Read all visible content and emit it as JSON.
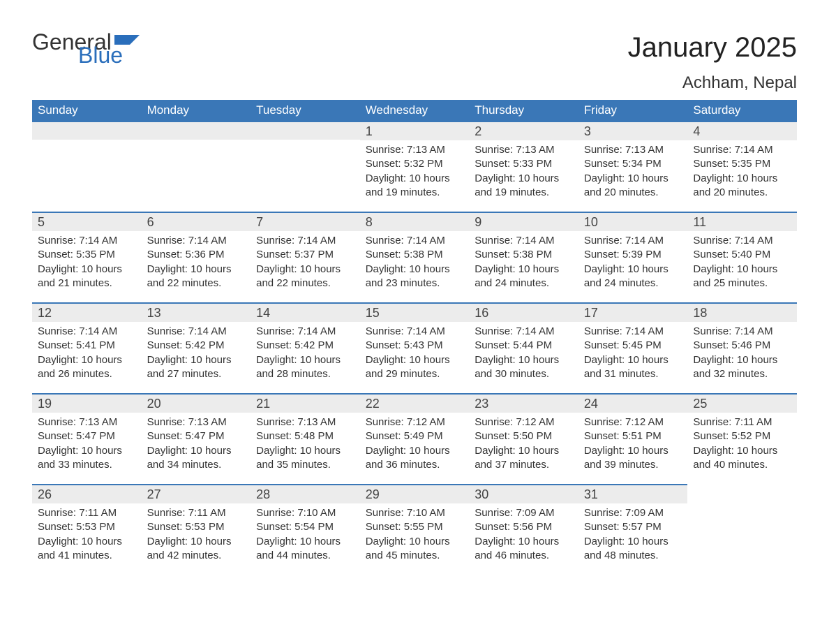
{
  "colors": {
    "header_bg": "#3a77b7",
    "header_text": "#ffffff",
    "daynum_bg": "#ececec",
    "daynum_border": "#3a77b7",
    "body_text": "#333333",
    "logo_blue": "#2a6ebb",
    "logo_dark": "#333333",
    "page_bg": "#ffffff"
  },
  "typography": {
    "month_title_pt": 40,
    "location_pt": 24,
    "weekday_pt": 17,
    "daynum_pt": 18,
    "body_pt": 15,
    "family": "Arial"
  },
  "logo": {
    "part1": "General",
    "part2": "Blue"
  },
  "title": "January 2025",
  "location": "Achham, Nepal",
  "weekdays": [
    "Sunday",
    "Monday",
    "Tuesday",
    "Wednesday",
    "Thursday",
    "Friday",
    "Saturday"
  ],
  "weeks": [
    [
      {
        "day": "",
        "sunrise": "",
        "sunset": "",
        "daylight": ""
      },
      {
        "day": "",
        "sunrise": "",
        "sunset": "",
        "daylight": ""
      },
      {
        "day": "",
        "sunrise": "",
        "sunset": "",
        "daylight": ""
      },
      {
        "day": "1",
        "sunrise": "Sunrise: 7:13 AM",
        "sunset": "Sunset: 5:32 PM",
        "daylight": "Daylight: 10 hours and 19 minutes."
      },
      {
        "day": "2",
        "sunrise": "Sunrise: 7:13 AM",
        "sunset": "Sunset: 5:33 PM",
        "daylight": "Daylight: 10 hours and 19 minutes."
      },
      {
        "day": "3",
        "sunrise": "Sunrise: 7:13 AM",
        "sunset": "Sunset: 5:34 PM",
        "daylight": "Daylight: 10 hours and 20 minutes."
      },
      {
        "day": "4",
        "sunrise": "Sunrise: 7:14 AM",
        "sunset": "Sunset: 5:35 PM",
        "daylight": "Daylight: 10 hours and 20 minutes."
      }
    ],
    [
      {
        "day": "5",
        "sunrise": "Sunrise: 7:14 AM",
        "sunset": "Sunset: 5:35 PM",
        "daylight": "Daylight: 10 hours and 21 minutes."
      },
      {
        "day": "6",
        "sunrise": "Sunrise: 7:14 AM",
        "sunset": "Sunset: 5:36 PM",
        "daylight": "Daylight: 10 hours and 22 minutes."
      },
      {
        "day": "7",
        "sunrise": "Sunrise: 7:14 AM",
        "sunset": "Sunset: 5:37 PM",
        "daylight": "Daylight: 10 hours and 22 minutes."
      },
      {
        "day": "8",
        "sunrise": "Sunrise: 7:14 AM",
        "sunset": "Sunset: 5:38 PM",
        "daylight": "Daylight: 10 hours and 23 minutes."
      },
      {
        "day": "9",
        "sunrise": "Sunrise: 7:14 AM",
        "sunset": "Sunset: 5:38 PM",
        "daylight": "Daylight: 10 hours and 24 minutes."
      },
      {
        "day": "10",
        "sunrise": "Sunrise: 7:14 AM",
        "sunset": "Sunset: 5:39 PM",
        "daylight": "Daylight: 10 hours and 24 minutes."
      },
      {
        "day": "11",
        "sunrise": "Sunrise: 7:14 AM",
        "sunset": "Sunset: 5:40 PM",
        "daylight": "Daylight: 10 hours and 25 minutes."
      }
    ],
    [
      {
        "day": "12",
        "sunrise": "Sunrise: 7:14 AM",
        "sunset": "Sunset: 5:41 PM",
        "daylight": "Daylight: 10 hours and 26 minutes."
      },
      {
        "day": "13",
        "sunrise": "Sunrise: 7:14 AM",
        "sunset": "Sunset: 5:42 PM",
        "daylight": "Daylight: 10 hours and 27 minutes."
      },
      {
        "day": "14",
        "sunrise": "Sunrise: 7:14 AM",
        "sunset": "Sunset: 5:42 PM",
        "daylight": "Daylight: 10 hours and 28 minutes."
      },
      {
        "day": "15",
        "sunrise": "Sunrise: 7:14 AM",
        "sunset": "Sunset: 5:43 PM",
        "daylight": "Daylight: 10 hours and 29 minutes."
      },
      {
        "day": "16",
        "sunrise": "Sunrise: 7:14 AM",
        "sunset": "Sunset: 5:44 PM",
        "daylight": "Daylight: 10 hours and 30 minutes."
      },
      {
        "day": "17",
        "sunrise": "Sunrise: 7:14 AM",
        "sunset": "Sunset: 5:45 PM",
        "daylight": "Daylight: 10 hours and 31 minutes."
      },
      {
        "day": "18",
        "sunrise": "Sunrise: 7:14 AM",
        "sunset": "Sunset: 5:46 PM",
        "daylight": "Daylight: 10 hours and 32 minutes."
      }
    ],
    [
      {
        "day": "19",
        "sunrise": "Sunrise: 7:13 AM",
        "sunset": "Sunset: 5:47 PM",
        "daylight": "Daylight: 10 hours and 33 minutes."
      },
      {
        "day": "20",
        "sunrise": "Sunrise: 7:13 AM",
        "sunset": "Sunset: 5:47 PM",
        "daylight": "Daylight: 10 hours and 34 minutes."
      },
      {
        "day": "21",
        "sunrise": "Sunrise: 7:13 AM",
        "sunset": "Sunset: 5:48 PM",
        "daylight": "Daylight: 10 hours and 35 minutes."
      },
      {
        "day": "22",
        "sunrise": "Sunrise: 7:12 AM",
        "sunset": "Sunset: 5:49 PM",
        "daylight": "Daylight: 10 hours and 36 minutes."
      },
      {
        "day": "23",
        "sunrise": "Sunrise: 7:12 AM",
        "sunset": "Sunset: 5:50 PM",
        "daylight": "Daylight: 10 hours and 37 minutes."
      },
      {
        "day": "24",
        "sunrise": "Sunrise: 7:12 AM",
        "sunset": "Sunset: 5:51 PM",
        "daylight": "Daylight: 10 hours and 39 minutes."
      },
      {
        "day": "25",
        "sunrise": "Sunrise: 7:11 AM",
        "sunset": "Sunset: 5:52 PM",
        "daylight": "Daylight: 10 hours and 40 minutes."
      }
    ],
    [
      {
        "day": "26",
        "sunrise": "Sunrise: 7:11 AM",
        "sunset": "Sunset: 5:53 PM",
        "daylight": "Daylight: 10 hours and 41 minutes."
      },
      {
        "day": "27",
        "sunrise": "Sunrise: 7:11 AM",
        "sunset": "Sunset: 5:53 PM",
        "daylight": "Daylight: 10 hours and 42 minutes."
      },
      {
        "day": "28",
        "sunrise": "Sunrise: 7:10 AM",
        "sunset": "Sunset: 5:54 PM",
        "daylight": "Daylight: 10 hours and 44 minutes."
      },
      {
        "day": "29",
        "sunrise": "Sunrise: 7:10 AM",
        "sunset": "Sunset: 5:55 PM",
        "daylight": "Daylight: 10 hours and 45 minutes."
      },
      {
        "day": "30",
        "sunrise": "Sunrise: 7:09 AM",
        "sunset": "Sunset: 5:56 PM",
        "daylight": "Daylight: 10 hours and 46 minutes."
      },
      {
        "day": "31",
        "sunrise": "Sunrise: 7:09 AM",
        "sunset": "Sunset: 5:57 PM",
        "daylight": "Daylight: 10 hours and 48 minutes."
      },
      {
        "day": "",
        "sunrise": "",
        "sunset": "",
        "daylight": ""
      }
    ]
  ]
}
